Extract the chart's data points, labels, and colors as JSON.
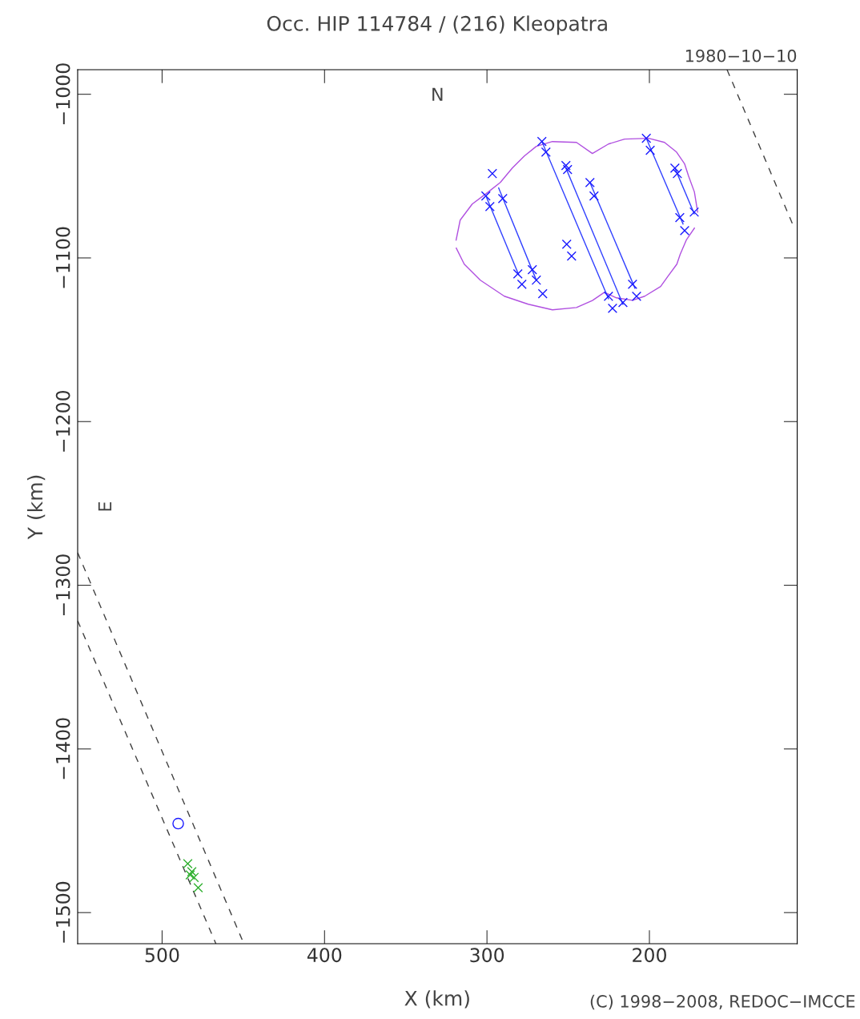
{
  "chart_data": {
    "type": "line",
    "title": "Occ. HIP 114784 / (216) Kleopatra",
    "xlabel": "X (km)",
    "ylabel": "Y (km)",
    "xlim": [
      552,
      109
    ],
    "ylim": [
      -1519,
      -985
    ],
    "xticks": [
      500,
      400,
      300,
      200
    ],
    "yticks": [
      {
        "value": -1000,
        "label": "−1000"
      },
      {
        "value": -1100,
        "label": "−1100"
      },
      {
        "value": -1200,
        "label": "−1200"
      },
      {
        "value": -1300,
        "label": "−1300"
      },
      {
        "value": -1400,
        "label": "−1400"
      },
      {
        "value": -1500,
        "label": "−1500"
      }
    ],
    "grid": false,
    "legend": false,
    "annotations": [
      "N",
      "E",
      "1980−10−10",
      "(C) 1998−2008, REDOC−IMCCE"
    ],
    "series": [
      {
        "color": "#b050e0",
        "marker": "none",
        "line_style": "solid",
        "x": [
          319,
          316.5,
          309.1,
          299.2,
          291.8,
          284.4,
          277.0,
          269.6,
          259.7,
          244.9,
          235.1,
          225.2,
          215.3,
          200.5,
          190.7,
          183.3,
          178.3,
          175.9,
          172.3,
          170.3
        ],
        "values": [
          -1089.1,
          -1076.9,
          -1067.1,
          -1059.7,
          -1053.9,
          -1045.1,
          -1037.7,
          -1031.8,
          -1028.9,
          -1029.4,
          -1036.2,
          -1030.4,
          -1027.4,
          -1026.9,
          -1029.4,
          -1035.3,
          -1042.6,
          -1050.0,
          -1059.7,
          -1072.0
        ]
      },
      {
        "color": "#b050e0",
        "marker": "none",
        "line_style": "solid",
        "x": [
          172.3,
          177.3,
          181.1,
          183.1,
          188.6,
          193.1,
          202.9,
          210.4,
          220.3,
          227.7,
          235.1,
          244.9,
          259.7,
          274.6,
          289.3,
          304.1,
          314.0,
          318.9
        ],
        "values": [
          -1081.8,
          -1089.1,
          -1097.9,
          -1103.8,
          -1111.2,
          -1117.5,
          -1123.4,
          -1125.9,
          -1124.4,
          -1121.0,
          -1126.0,
          -1130.3,
          -1131.7,
          -1128.3,
          -1123.4,
          -1113.6,
          -1103.8,
          -1094.0
        ]
      },
      {
        "type": "line",
        "color": "#3040ff",
        "marker": "none",
        "line_style": "solid",
        "x": [
          300.2,
          280.5
        ],
        "values": [
          -1063.2,
          -1110.2
        ]
      },
      {
        "type": "line",
        "color": "#3040ff",
        "marker": "none",
        "line_style": "solid",
        "x": [
          292.8,
          269.6
        ],
        "values": [
          -1057.3,
          -1113.6
        ]
      },
      {
        "type": "line",
        "color": "#3040ff",
        "marker": "none",
        "line_style": "solid",
        "x": [
          266.2,
          225.2
        ],
        "values": [
          -1028.9,
          -1124.9
        ]
      },
      {
        "type": "line",
        "color": "#3040ff",
        "marker": "none",
        "line_style": "solid",
        "x": [
          251.4,
          216.3
        ],
        "values": [
          -1045.1,
          -1128.3
        ]
      },
      {
        "type": "line",
        "color": "#3040ff",
        "marker": "none",
        "line_style": "solid",
        "x": [
          236.6,
          208.9
        ],
        "values": [
          -1053.9,
          -1118.5
        ]
      },
      {
        "type": "line",
        "color": "#3040ff",
        "marker": "none",
        "line_style": "solid",
        "x": [
          201.5,
          179.3
        ],
        "values": [
          -1027.9,
          -1079.3
        ]
      },
      {
        "type": "line",
        "color": "#3040ff",
        "marker": "none",
        "line_style": "solid",
        "x": [
          184.3,
          172.4
        ],
        "values": [
          -1045.1,
          -1073.0
        ]
      },
      {
        "type": "line",
        "color": "#404040",
        "marker": "none",
        "line_style": "dashed",
        "x": [
          152.2,
          110.8
        ],
        "values": [
          -985,
          -1081.8
        ]
      },
      {
        "type": "line",
        "color": "#404040",
        "marker": "none",
        "line_style": "dashed",
        "x": [
          552,
          449.7
        ],
        "values": [
          -1280.1,
          -1519
        ]
      },
      {
        "type": "line",
        "color": "#404040",
        "marker": "none",
        "line_style": "dashed",
        "x": [
          552,
          466.9
        ],
        "values": [
          -1321.7,
          -1519
        ]
      },
      {
        "type": "scatter",
        "color": "#1a1aff",
        "marker": "cross",
        "x": [
          296.7,
          300.7,
          298.2,
          290.3,
          281.0,
          278.5,
          272.1,
          269.6,
          265.7,
          266.2,
          263.7,
          251.4,
          250.4,
          236.6,
          234.1,
          250.9,
          247.9,
          225.2,
          222.7,
          216.3,
          210.4,
          207.9,
          201.9,
          199.5,
          184.3,
          182.8,
          181.3,
          178.3,
          172.4
        ],
        "values": [
          -1048.5,
          -1062.2,
          -1068.6,
          -1063.7,
          -1109.7,
          -1116.1,
          -1107.2,
          -1113.6,
          -1121.9,
          -1028.9,
          -1035.3,
          -1043.6,
          -1046.0,
          -1053.9,
          -1062.2,
          -1091.6,
          -1098.9,
          -1123.4,
          -1130.8,
          -1127.3,
          -1116.1,
          -1123.4,
          -1026.9,
          -1034.3,
          -1045.1,
          -1048.5,
          -1075.4,
          -1083.3,
          -1072.0
        ]
      },
      {
        "type": "scatter",
        "color": "#30b030",
        "marker": "cross",
        "x": [
          484.2,
          481.7,
          480.3,
          477.8,
          482.7
        ],
        "values": [
          -1470.1,
          -1475.0,
          -1478.5,
          -1484.8,
          -1477.0
        ]
      },
      {
        "type": "scatter",
        "color": "#1a1aff",
        "marker": "circle",
        "x": [
          490.1
        ],
        "values": [
          -1445.6
        ]
      }
    ]
  }
}
